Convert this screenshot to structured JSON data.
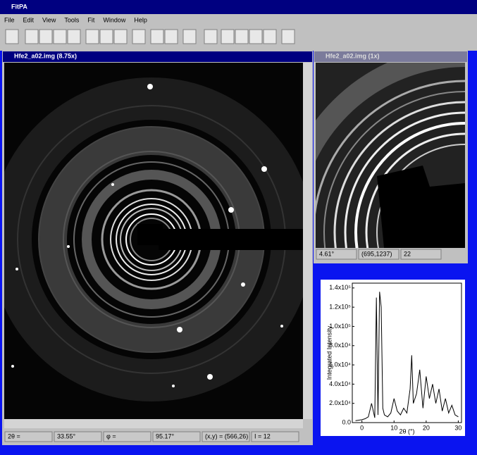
{
  "app": {
    "title": "FitPA",
    "menu": [
      "File",
      "Edit",
      "View",
      "Tools",
      "Fit",
      "Window",
      "Help"
    ]
  },
  "main_window": {
    "title": "Hfe2_a02.img (8.75x)",
    "status": [
      "2θ =",
      "33.55°",
      "φ =",
      "95.17°",
      "(x,y) = (566,26)",
      "I = 12"
    ]
  },
  "zoom_window": {
    "title": "Hfe2_a02.img (1x)",
    "status": [
      "4.61°",
      "(695,1237)",
      "22"
    ]
  },
  "chart": {
    "type": "line",
    "xlabel": "2θ (°)",
    "ylabel": "Integrated Intensity",
    "color": "#000000",
    "x": [
      -2,
      0,
      1,
      2,
      3,
      4,
      4.5,
      5,
      5.5,
      6,
      6.5,
      7,
      8,
      9,
      10,
      11,
      12,
      13,
      14,
      15,
      15.5,
      16,
      17,
      18,
      19,
      20,
      21,
      22,
      23,
      24,
      25,
      26,
      27,
      28,
      29,
      30
    ],
    "values": [
      2000,
      3000,
      4000,
      6000,
      20000,
      5000,
      130000,
      8000,
      136000,
      120000,
      15000,
      8000,
      6000,
      10000,
      25000,
      12000,
      8000,
      15000,
      10000,
      35000,
      70000,
      20000,
      30000,
      55000,
      15000,
      48000,
      25000,
      40000,
      20000,
      35000,
      12000,
      25000,
      10000,
      18000,
      8000,
      6000
    ],
    "xlim": [
      -3,
      31
    ],
    "xticks": [
      0,
      10,
      20,
      30
    ],
    "ylim": [
      0,
      145000
    ],
    "yticks": [
      {
        "value": 0,
        "label": "0.0"
      },
      {
        "value": 20000,
        "label": "2.0x10⁴"
      },
      {
        "value": 40000,
        "label": "4.0x10⁴"
      },
      {
        "value": 60000,
        "label": "6.0x10⁴"
      },
      {
        "value": 80000,
        "label": "8.0x10⁴"
      },
      {
        "value": 100000,
        "label": "1.0x10⁵"
      },
      {
        "value": 120000,
        "label": "1.2x10⁵"
      },
      {
        "value": 140000,
        "label": "1.4x10⁵"
      }
    ]
  }
}
